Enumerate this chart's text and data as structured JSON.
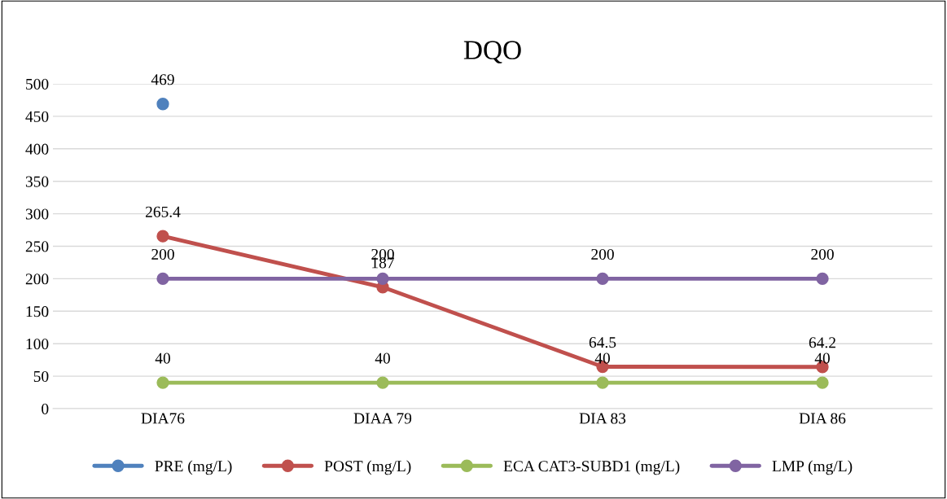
{
  "chart_data": {
    "type": "line",
    "title": "DQO",
    "categories": [
      "DIA76",
      "DIAA 79",
      "DIA 83",
      "DIA 86"
    ],
    "series": [
      {
        "name": "PRE (mg/L)",
        "color": "#4f81bd",
        "values": [
          469,
          null,
          null,
          null
        ]
      },
      {
        "name": "POST (mg/L)",
        "color": "#c0504d",
        "values": [
          265.4,
          187,
          64.5,
          64.2
        ]
      },
      {
        "name": "ECA CAT3-SUBD1 (mg/L)",
        "color": "#9bbb59",
        "values": [
          40,
          40,
          40,
          40
        ]
      },
      {
        "name": "LMP (mg/L)",
        "color": "#8064a2",
        "values": [
          200,
          200,
          200,
          200
        ]
      }
    ],
    "ylim": [
      0,
      500
    ],
    "yticks": [
      0,
      50,
      100,
      150,
      200,
      250,
      300,
      350,
      400,
      450,
      500
    ],
    "grid": "y",
    "legend": "bottom",
    "marker": "circle",
    "line_style": "solid",
    "data_labels": true
  }
}
